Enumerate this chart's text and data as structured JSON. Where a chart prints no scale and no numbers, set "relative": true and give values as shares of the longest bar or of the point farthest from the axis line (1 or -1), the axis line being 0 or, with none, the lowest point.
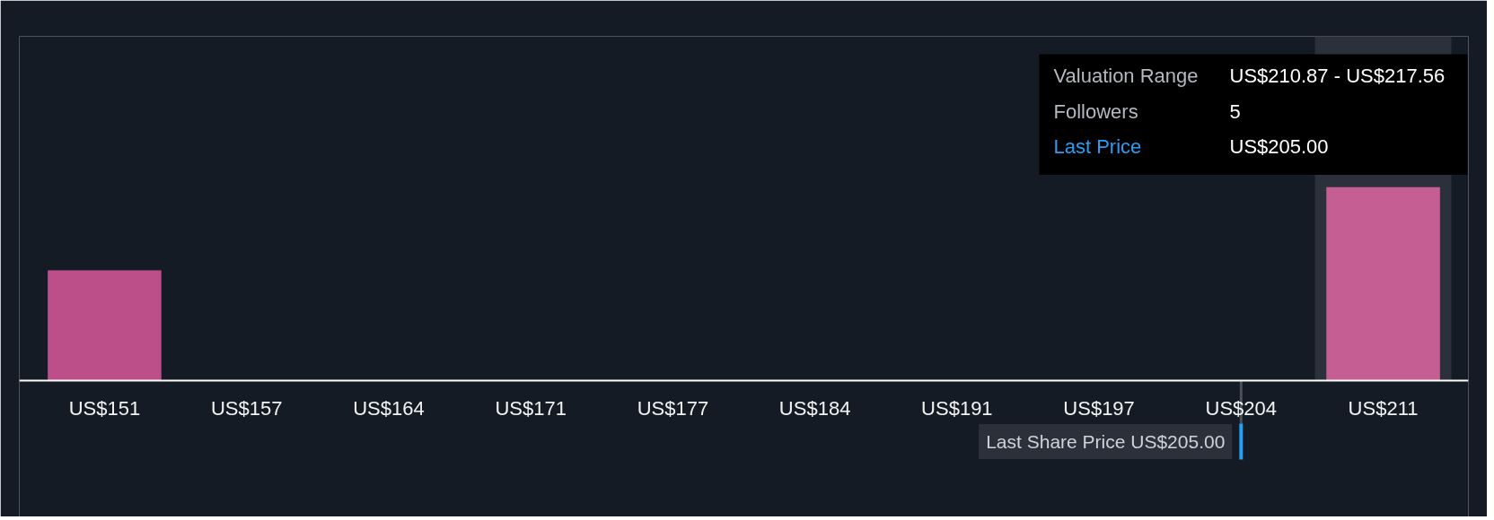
{
  "chart_data": {
    "type": "bar",
    "relative": true,
    "categories": [
      "US$151",
      "US$157",
      "US$164",
      "US$171",
      "US$177",
      "US$184",
      "US$191",
      "US$197",
      "US$204",
      "US$211"
    ],
    "values": [
      0.57,
      0,
      0,
      0,
      0,
      0,
      0,
      0,
      0,
      1
    ],
    "colors": [
      "#bc4e8a",
      "#bc4e8a",
      "#bc4e8a",
      "#bc4e8a",
      "#bc4e8a",
      "#bc4e8a",
      "#bc4e8a",
      "#bc4e8a",
      "#bc4e8a",
      "#c45e93"
    ],
    "ref_lines": [
      {
        "axis": "x",
        "value": "US$204",
        "label": "Last Share Price US$205.00",
        "color": "#2a9df4"
      }
    ],
    "bands": [
      {
        "axis": "x",
        "from": "US$211",
        "to": "US$211",
        "color": "#2c303b"
      }
    ],
    "annotations": [
      "Valuation Range",
      "US$210.87 - US$217.56",
      "Followers",
      "5",
      "Last Price",
      "US$205.00"
    ]
  }
}
